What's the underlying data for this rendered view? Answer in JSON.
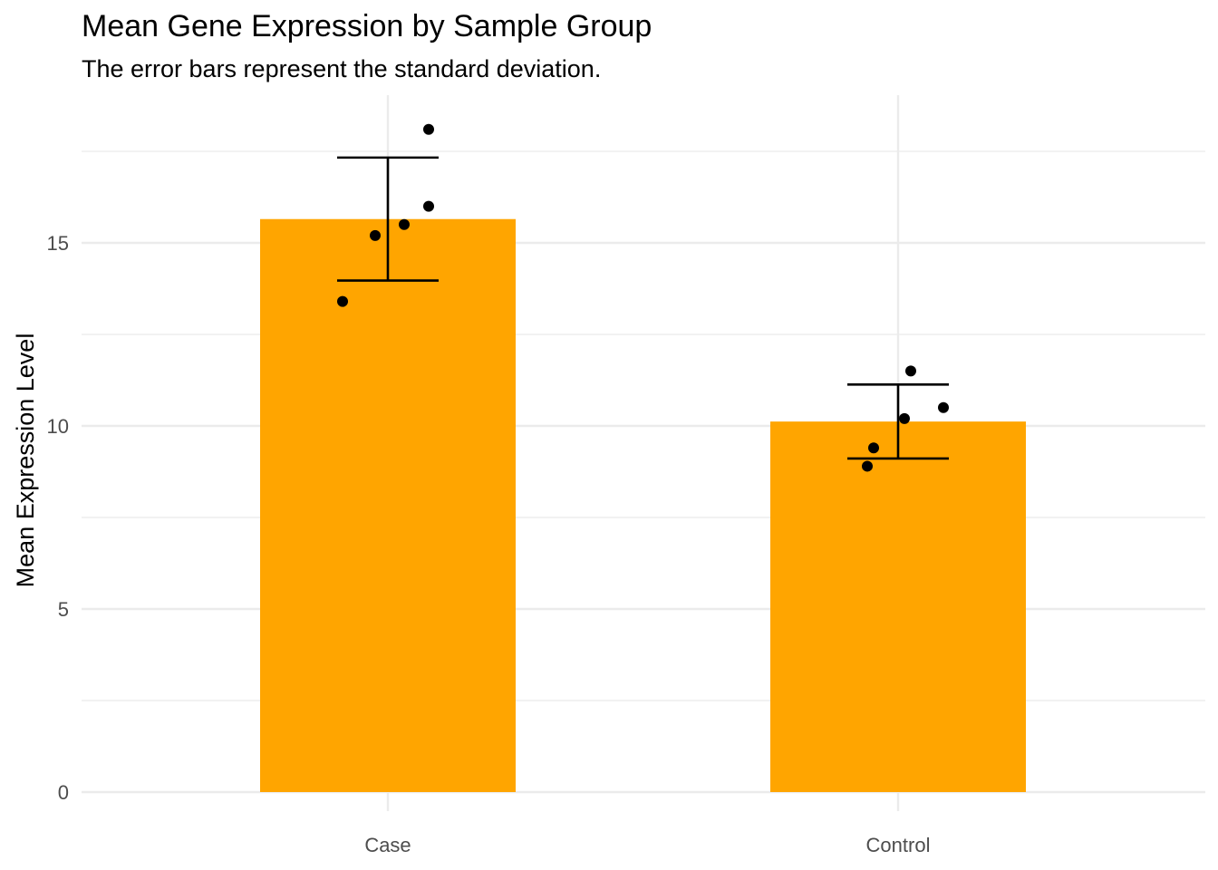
{
  "chart_data": {
    "type": "bar",
    "title": "Mean Gene Expression by Sample Group",
    "subtitle": "The error bars represent the standard deviation.",
    "xlabel": "",
    "ylabel": "Mean Expression Level",
    "categories": [
      "Case",
      "Control"
    ],
    "values": [
      15.65,
      10.12
    ],
    "error_bars": {
      "type": "sd",
      "sd": [
        1.68,
        1.01
      ]
    },
    "points": [
      {
        "category": "Case",
        "values": [
          13.4,
          15.2,
          15.5,
          16.0,
          18.1
        ]
      },
      {
        "category": "Control",
        "values": [
          8.9,
          9.4,
          10.2,
          10.5,
          11.5
        ]
      }
    ],
    "ylim": [
      0,
      19
    ],
    "yticks": [
      0,
      5,
      10,
      15
    ],
    "grid": true,
    "legend": "none",
    "colors": {
      "bar": "#FFA500",
      "points": "#000000",
      "error_bars": "#000000",
      "grid": "#EBEBEB"
    }
  }
}
